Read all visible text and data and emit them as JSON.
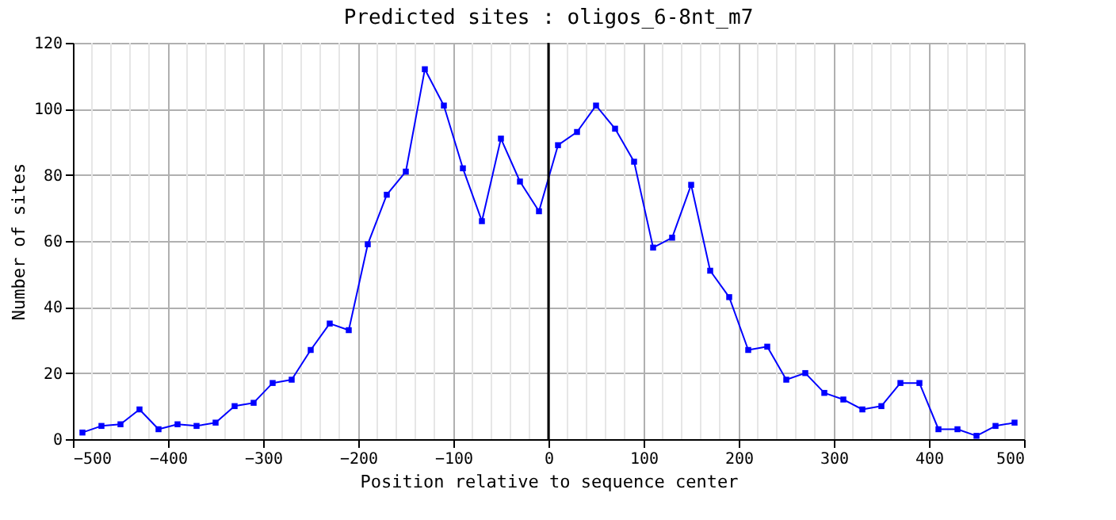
{
  "chart_data": {
    "type": "line",
    "title": "Predicted sites : oligos_6-8nt_m7",
    "xlabel": "Position relative to sequence center",
    "ylabel": "Number of sites",
    "x": [
      -490,
      -470,
      -450,
      -430,
      -410,
      -390,
      -370,
      -350,
      -330,
      -310,
      -290,
      -270,
      -250,
      -230,
      -210,
      -190,
      -170,
      -150,
      -130,
      -110,
      -90,
      -70,
      -50,
      -30,
      -10,
      10,
      30,
      50,
      70,
      90,
      110,
      130,
      150,
      170,
      190,
      210,
      230,
      250,
      270,
      290,
      310,
      330,
      350,
      370,
      390,
      410,
      430,
      450,
      470,
      490
    ],
    "series": [
      {
        "color": "#0000ff",
        "values": [
          2,
          4,
          4.5,
          9,
          3,
          4.5,
          4,
          5,
          10,
          11,
          17,
          18,
          27,
          35,
          33,
          59,
          74,
          81,
          112,
          101,
          82,
          66,
          91,
          78,
          69,
          89,
          93,
          101,
          94,
          84,
          58,
          61,
          77,
          51,
          43,
          27,
          28,
          18,
          20,
          14,
          12,
          9,
          10,
          17,
          17,
          3,
          3,
          1,
          4,
          5
        ]
      }
    ],
    "xlim": [
      -500,
      500
    ],
    "xticks": [
      -500,
      -400,
      -300,
      -200,
      -100,
      0,
      100,
      200,
      300,
      400,
      500
    ],
    "ylim": [
      0,
      120
    ],
    "yticks": [
      0,
      20,
      40,
      60,
      80,
      100,
      120
    ],
    "ref_lines": [
      {
        "axis": "x",
        "value": 0,
        "color": "#000000"
      }
    ],
    "grid": true,
    "marker": "square",
    "line_style": "solid"
  }
}
